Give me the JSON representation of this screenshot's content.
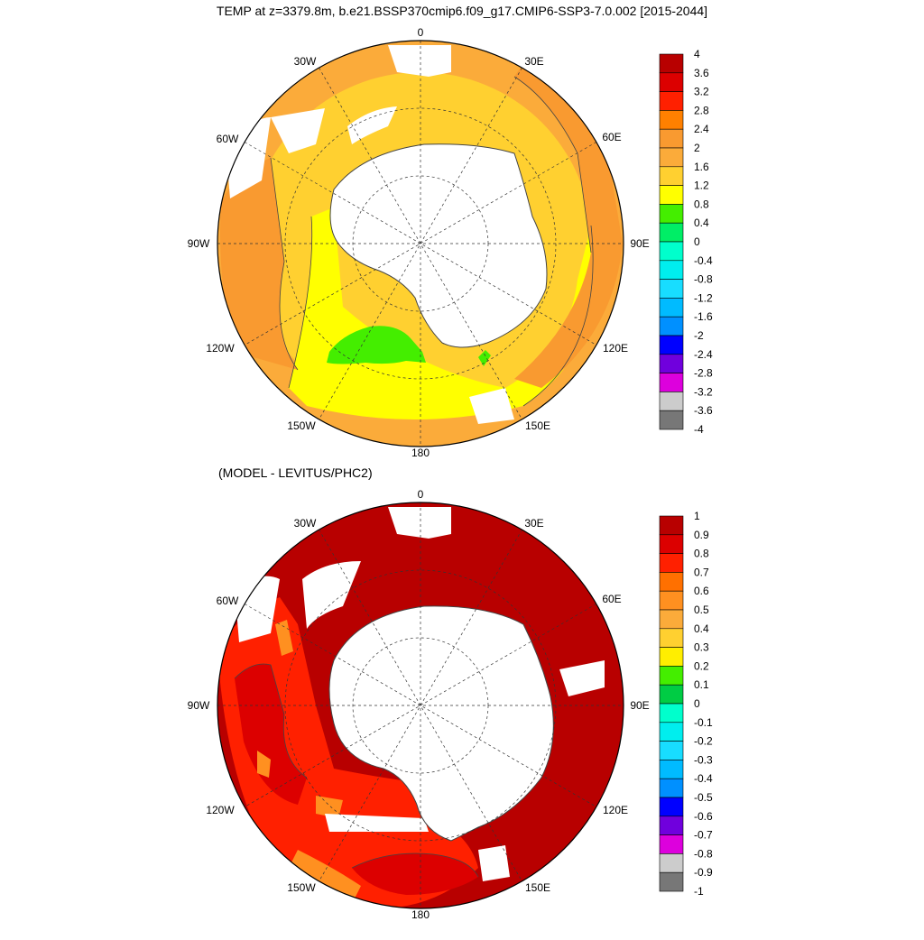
{
  "title": "TEMP at z=3379.8m, b.e21.BSSP370cmip6.f09_g17.CMIP6-SSP3-7.0.002 [2015-2044]",
  "subtitle": "(MODEL - LEVITUS/PHC2)",
  "longitude_labels": [
    "0",
    "30E",
    "60E",
    "90E",
    "120E",
    "150E",
    "180",
    "150W",
    "120W",
    "90W",
    "60W",
    "30W"
  ],
  "colors": {
    "land": "#ffffff",
    "coast": "#444444",
    "frame": "#000000"
  },
  "top_map": {
    "colorbar_labels": [
      "4",
      "3.6",
      "3.2",
      "2.8",
      "2.4",
      "2",
      "1.6",
      "1.2",
      "0.8",
      "0.4",
      "0",
      "-0.4",
      "-0.8",
      "-1.2",
      "-1.6",
      "-2",
      "-2.4",
      "-2.8",
      "-3.2",
      "-3.6",
      "-4"
    ],
    "colorbar_colors": [
      "#b80000",
      "#dc0000",
      "#ff2000",
      "#ff8000",
      "#f99a30",
      "#fbab3a",
      "#ffd030",
      "#ffff00",
      "#44ee00",
      "#00ee66",
      "#00ffcc",
      "#00eeee",
      "#18ddff",
      "#00bbff",
      "#0090ff",
      "#0000ff",
      "#7000dd",
      "#dd00dd",
      "#cccccc",
      "#777777"
    ],
    "regions": {
      "outer_ring": "#fbab3a",
      "mid_ring": "#ffd030",
      "inner_ring": "#ffff00",
      "warm_patch": "#f99a30",
      "green_patch": "#44ee00"
    }
  },
  "bottom_map": {
    "colorbar_labels": [
      "1",
      "0.9",
      "0.8",
      "0.7",
      "0.6",
      "0.5",
      "0.4",
      "0.3",
      "0.2",
      "0.1",
      "0",
      "-0.1",
      "-0.2",
      "-0.3",
      "-0.4",
      "-0.5",
      "-0.6",
      "-0.7",
      "-0.8",
      "-0.9",
      "-1"
    ],
    "colorbar_colors": [
      "#b80000",
      "#dc0000",
      "#ff2000",
      "#ff7000",
      "#ff9020",
      "#fbab3a",
      "#ffd030",
      "#ffee00",
      "#44ee00",
      "#00cc44",
      "#00ffcc",
      "#00eeee",
      "#18ddff",
      "#00bbff",
      "#0090ff",
      "#0000ff",
      "#7000dd",
      "#dd00dd",
      "#cccccc",
      "#777777"
    ],
    "regions": {
      "dominant": "#b80000",
      "pacific_sector": "#ff2000",
      "contour_band": "#dc0000",
      "warm_patch": "#ff9020"
    }
  }
}
